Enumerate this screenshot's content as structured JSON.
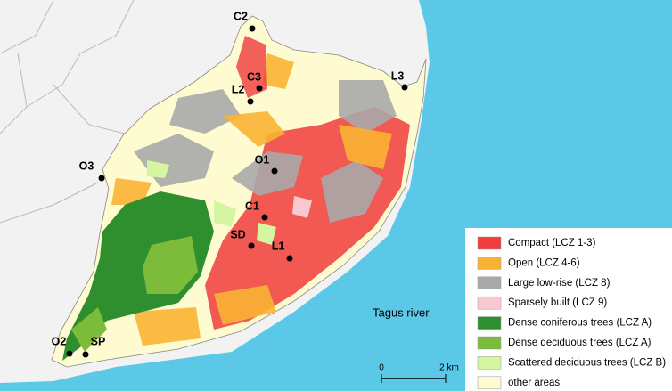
{
  "stations": [
    "C2",
    "C3",
    "L2",
    "L3",
    "O1",
    "O3",
    "C1",
    "SD",
    "L1",
    "O2",
    "SP"
  ],
  "water_label": "Tagus river",
  "scale": {
    "start": "0",
    "end": "2 km"
  },
  "legend": [
    {
      "label": "Compact (LCZ 1-3)",
      "color": "#f03c3c"
    },
    {
      "label": "Open (LCZ 4-6)",
      "color": "#f9b233"
    },
    {
      "label": "Large low-rise (LCZ 8)",
      "color": "#a9a9a9"
    },
    {
      "label": "Sparsely built (LCZ 9)",
      "color": "#f9c9d0"
    },
    {
      "label": "Dense coniferous trees (LCZ A)",
      "color": "#2f8f2f"
    },
    {
      "label": "Dense deciduous trees (LCZ A)",
      "color": "#7dbb3a"
    },
    {
      "label": "Scattered deciduous trees (LCZ B)",
      "color": "#d5f5a0"
    },
    {
      "label": "other areas",
      "color": "#fdfbcf"
    }
  ]
}
